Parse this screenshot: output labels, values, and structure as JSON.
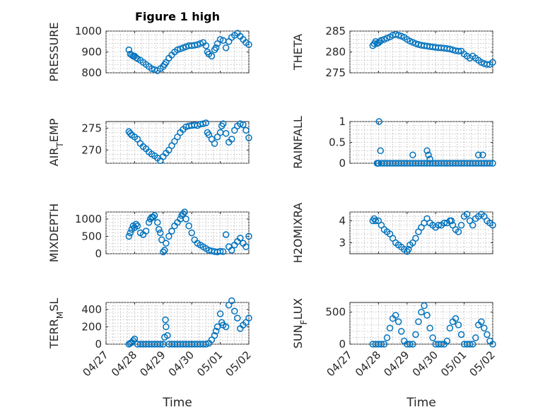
{
  "figure": {
    "title": "Figure 1 high",
    "marker_color": "#0072BD",
    "x_tick_labels": [
      "04/27",
      "04/28",
      "04/29",
      "04/30",
      "05/01",
      "05/02"
    ]
  },
  "chart_data": [
    {
      "type": "scatter",
      "title": "Figure 1 high",
      "xlabel": "",
      "ylabel": "PRESSURE",
      "ylim": [
        800,
        1000
      ],
      "yticks": [
        800,
        900,
        1000
      ],
      "xlim": [
        0,
        5
      ],
      "grid": true,
      "x": [
        0.8,
        0.85,
        0.9,
        0.95,
        1.0,
        1.05,
        1.1,
        1.2,
        1.3,
        1.4,
        1.5,
        1.6,
        1.7,
        1.8,
        1.9,
        2.0,
        2.05,
        2.1,
        2.2,
        2.3,
        2.4,
        2.5,
        2.6,
        2.7,
        2.8,
        2.9,
        3.0,
        3.1,
        3.2,
        3.3,
        3.4,
        3.5,
        3.55,
        3.6,
        3.7,
        3.8,
        3.85,
        3.9,
        4.0,
        4.1,
        4.2,
        4.3,
        4.4,
        4.5,
        4.6,
        4.7,
        4.8,
        4.9,
        5.0
      ],
      "values": [
        910,
        890,
        885,
        880,
        880,
        872,
        868,
        860,
        850,
        840,
        830,
        820,
        815,
        810,
        820,
        830,
        840,
        850,
        870,
        885,
        900,
        910,
        915,
        920,
        925,
        930,
        930,
        932,
        935,
        940,
        945,
        930,
        900,
        890,
        880,
        910,
        920,
        940,
        960,
        955,
        920,
        950,
        970,
        980,
        990,
        975,
        960,
        945,
        935
      ]
    },
    {
      "type": "scatter",
      "title": "",
      "xlabel": "",
      "ylabel": "THETA",
      "ylim": [
        275,
        285
      ],
      "yticks": [
        275,
        280,
        285
      ],
      "xlim": [
        0,
        5
      ],
      "grid": true,
      "x": [
        0.8,
        0.85,
        0.9,
        0.95,
        1.0,
        1.05,
        1.1,
        1.2,
        1.3,
        1.4,
        1.5,
        1.6,
        1.7,
        1.8,
        1.9,
        2.0,
        2.1,
        2.2,
        2.3,
        2.4,
        2.5,
        2.6,
        2.7,
        2.8,
        2.9,
        3.0,
        3.1,
        3.2,
        3.3,
        3.4,
        3.5,
        3.6,
        3.7,
        3.8,
        3.9,
        4.0,
        4.1,
        4.2,
        4.3,
        4.4,
        4.5,
        4.6,
        4.7,
        4.8,
        4.9,
        5.0
      ],
      "values": [
        281.5,
        282.0,
        282.5,
        282.0,
        282.2,
        282.5,
        282.8,
        283.0,
        283.3,
        283.6,
        284.0,
        284.2,
        284.0,
        283.8,
        283.5,
        283.0,
        282.6,
        282.3,
        282.0,
        281.8,
        281.6,
        281.5,
        281.4,
        281.3,
        281.2,
        281.1,
        281.0,
        281.0,
        280.9,
        280.8,
        280.7,
        280.5,
        280.3,
        280.2,
        280.2,
        279.5,
        279.0,
        278.5,
        279.0,
        278.5,
        278.0,
        277.5,
        277.2,
        277.0,
        277.0,
        277.5
      ]
    },
    {
      "type": "scatter",
      "title": "",
      "xlabel": "",
      "ylabel": "AIR_TEMP",
      "ylim": [
        267,
        276.5
      ],
      "yticks": [
        270,
        275
      ],
      "xlim": [
        0,
        5
      ],
      "grid": true,
      "x": [
        0.8,
        0.85,
        0.9,
        1.0,
        1.1,
        1.2,
        1.3,
        1.4,
        1.5,
        1.6,
        1.7,
        1.8,
        1.9,
        2.0,
        2.1,
        2.2,
        2.3,
        2.4,
        2.5,
        2.6,
        2.7,
        2.8,
        2.9,
        3.0,
        3.1,
        3.2,
        3.3,
        3.4,
        3.5,
        3.55,
        3.6,
        3.7,
        3.8,
        3.9,
        4.0,
        4.05,
        4.1,
        4.2,
        4.3,
        4.4,
        4.5,
        4.6,
        4.7,
        4.8,
        4.9,
        5.0
      ],
      "values": [
        274.2,
        273.8,
        273.4,
        273.0,
        272.5,
        271.5,
        270.8,
        270.3,
        269.6,
        269.1,
        268.7,
        268.2,
        267.6,
        268.5,
        269.3,
        270.0,
        271.0,
        272.0,
        273.0,
        274.0,
        274.7,
        275.3,
        275.5,
        275.6,
        275.7,
        275.6,
        275.9,
        276.0,
        276.2,
        274.0,
        273.5,
        272.5,
        271.5,
        273.0,
        274.0,
        275.5,
        276.0,
        273.8,
        271.8,
        272.5,
        274.5,
        275.5,
        276.0,
        275.8,
        274.5,
        272.8
      ]
    },
    {
      "type": "scatter",
      "title": "",
      "xlabel": "",
      "ylabel": "RAINFALL",
      "ylim": [
        0,
        1
      ],
      "yticks": [
        0,
        0.5,
        1
      ],
      "xlim": [
        0,
        5
      ],
      "grid": true,
      "x": [
        1.0,
        1.1,
        1.2,
        1.3,
        1.4,
        1.5,
        1.6,
        1.7,
        1.8,
        1.9,
        2.0,
        2.1,
        2.2,
        2.3,
        2.4,
        2.5,
        2.6,
        2.7,
        2.8,
        2.9,
        3.0,
        3.1,
        3.2,
        3.3,
        3.4,
        3.5,
        3.6,
        3.7,
        3.8,
        3.9,
        4.0,
        4.1,
        4.2,
        4.3,
        4.4,
        4.5,
        4.6,
        4.7,
        4.8,
        4.9,
        5.0,
        0.95,
        0.98,
        1.02,
        1.07,
        2.2,
        2.7,
        2.75,
        2.8,
        4.5,
        4.65
      ],
      "values": [
        0,
        0,
        0,
        0,
        0,
        0,
        0,
        0,
        0,
        0,
        0,
        0,
        0,
        0,
        0,
        0,
        0,
        0,
        0,
        0,
        0,
        0,
        0,
        0,
        0,
        0,
        0,
        0,
        0,
        0,
        0,
        0,
        0,
        0,
        0,
        0,
        0,
        0,
        0,
        0,
        0,
        0,
        0,
        1.0,
        0.3,
        0.2,
        0.3,
        0.2,
        0.1,
        0.2,
        0.2
      ]
    },
    {
      "type": "scatter",
      "title": "",
      "xlabel": "",
      "ylabel": "MIXDEPTH",
      "ylim": [
        0,
        1200
      ],
      "yticks": [
        0,
        500,
        1000
      ],
      "xlim": [
        0,
        5
      ],
      "grid": true,
      "x": [
        0.8,
        0.85,
        0.9,
        0.95,
        1.0,
        1.05,
        1.1,
        1.2,
        1.3,
        1.4,
        1.5,
        1.55,
        1.6,
        1.65,
        1.7,
        1.8,
        1.85,
        1.9,
        1.95,
        2.0,
        2.05,
        2.1,
        2.2,
        2.3,
        2.4,
        2.5,
        2.6,
        2.65,
        2.7,
        2.75,
        2.8,
        2.9,
        3.0,
        3.1,
        3.2,
        3.3,
        3.4,
        3.5,
        3.6,
        3.7,
        3.8,
        3.9,
        4.0,
        4.1,
        4.2,
        4.3,
        4.4,
        4.5,
        4.6,
        4.7,
        4.8,
        4.9,
        5.0
      ],
      "values": [
        500,
        600,
        700,
        800,
        750,
        850,
        800,
        600,
        550,
        650,
        900,
        1000,
        1050,
        1050,
        1100,
        900,
        700,
        600,
        400,
        50,
        100,
        300,
        500,
        650,
        800,
        900,
        1000,
        1100,
        1150,
        1200,
        1000,
        800,
        600,
        400,
        300,
        250,
        200,
        150,
        100,
        80,
        60,
        50,
        70,
        60,
        550,
        200,
        100,
        250,
        350,
        450,
        300,
        200,
        500
      ]
    },
    {
      "type": "scatter",
      "title": "",
      "xlabel": "",
      "ylabel": "H2OMIXRA",
      "ylim": [
        2.5,
        4.4
      ],
      "yticks": [
        3,
        4
      ],
      "xlim": [
        0,
        5
      ],
      "grid": true,
      "x": [
        0.8,
        0.85,
        0.9,
        1.0,
        1.1,
        1.2,
        1.3,
        1.4,
        1.5,
        1.6,
        1.7,
        1.8,
        1.9,
        2.0,
        2.05,
        2.1,
        2.2,
        2.3,
        2.4,
        2.5,
        2.6,
        2.7,
        2.8,
        2.9,
        3.0,
        3.1,
        3.2,
        3.3,
        3.4,
        3.5,
        3.55,
        3.6,
        3.7,
        3.8,
        3.9,
        4.0,
        4.1,
        4.2,
        4.3,
        4.4,
        4.5,
        4.6,
        4.7,
        4.8,
        4.9,
        5.0
      ],
      "values": [
        4.0,
        4.1,
        4.0,
        4.0,
        3.8,
        3.6,
        3.5,
        3.4,
        3.2,
        3.0,
        2.9,
        2.8,
        2.7,
        2.6,
        2.7,
        2.9,
        3.0,
        3.2,
        3.5,
        3.7,
        3.9,
        4.1,
        3.9,
        3.8,
        3.7,
        3.8,
        3.8,
        3.9,
        3.9,
        4.0,
        4.0,
        3.8,
        3.6,
        3.5,
        3.8,
        4.2,
        4.3,
        4.0,
        3.8,
        4.1,
        4.2,
        4.3,
        4.2,
        4.0,
        3.9,
        3.8
      ]
    },
    {
      "type": "scatter",
      "title": "",
      "xlabel": "Time",
      "ylabel": "TERR_MSL",
      "ylim": [
        0,
        480
      ],
      "yticks": [
        0,
        200,
        400
      ],
      "xlim": [
        0,
        5
      ],
      "grid": true,
      "x": [
        0.8,
        0.85,
        0.9,
        0.95,
        1.0,
        1.1,
        1.2,
        1.3,
        1.4,
        1.5,
        1.6,
        1.7,
        1.8,
        1.9,
        2.0,
        2.05,
        2.08,
        2.1,
        2.15,
        2.2,
        2.3,
        2.4,
        2.5,
        2.6,
        2.7,
        2.8,
        2.9,
        3.0,
        3.1,
        3.2,
        3.3,
        3.4,
        3.5,
        3.6,
        3.7,
        3.8,
        3.85,
        3.9,
        4.0,
        4.05,
        4.1,
        4.2,
        4.3,
        4.4,
        4.5,
        4.6,
        4.7,
        4.8,
        4.9,
        5.0
      ],
      "values": [
        0,
        10,
        20,
        40,
        60,
        0,
        0,
        0,
        0,
        0,
        0,
        0,
        0,
        0,
        0,
        80,
        280,
        200,
        100,
        0,
        0,
        0,
        0,
        0,
        0,
        0,
        0,
        0,
        0,
        0,
        0,
        0,
        0,
        10,
        50,
        100,
        150,
        200,
        350,
        250,
        220,
        200,
        450,
        500,
        380,
        300,
        180,
        220,
        250,
        300
      ]
    },
    {
      "type": "scatter",
      "title": "",
      "xlabel": "Time",
      "ylabel": "SUN_FLUX",
      "ylim": [
        0,
        650
      ],
      "yticks": [
        0,
        500
      ],
      "xlim": [
        0,
        5
      ],
      "grid": true,
      "x": [
        0.8,
        0.9,
        1.0,
        1.1,
        1.2,
        1.3,
        1.4,
        1.5,
        1.6,
        1.7,
        1.8,
        1.9,
        2.0,
        2.1,
        2.2,
        2.3,
        2.4,
        2.5,
        2.6,
        2.7,
        2.8,
        2.9,
        3.0,
        3.1,
        3.2,
        3.3,
        3.4,
        3.5,
        3.6,
        3.7,
        3.8,
        3.9,
        4.0,
        4.1,
        4.2,
        4.3,
        4.4,
        4.5,
        4.6,
        4.7,
        4.8,
        4.9,
        5.0
      ],
      "values": [
        0,
        0,
        0,
        0,
        0,
        100,
        250,
        400,
        450,
        350,
        200,
        50,
        0,
        0,
        0,
        150,
        350,
        500,
        600,
        450,
        250,
        100,
        0,
        0,
        0,
        0,
        50,
        250,
        350,
        400,
        300,
        150,
        0,
        0,
        0,
        0,
        100,
        300,
        350,
        250,
        150,
        50,
        0
      ]
    }
  ]
}
